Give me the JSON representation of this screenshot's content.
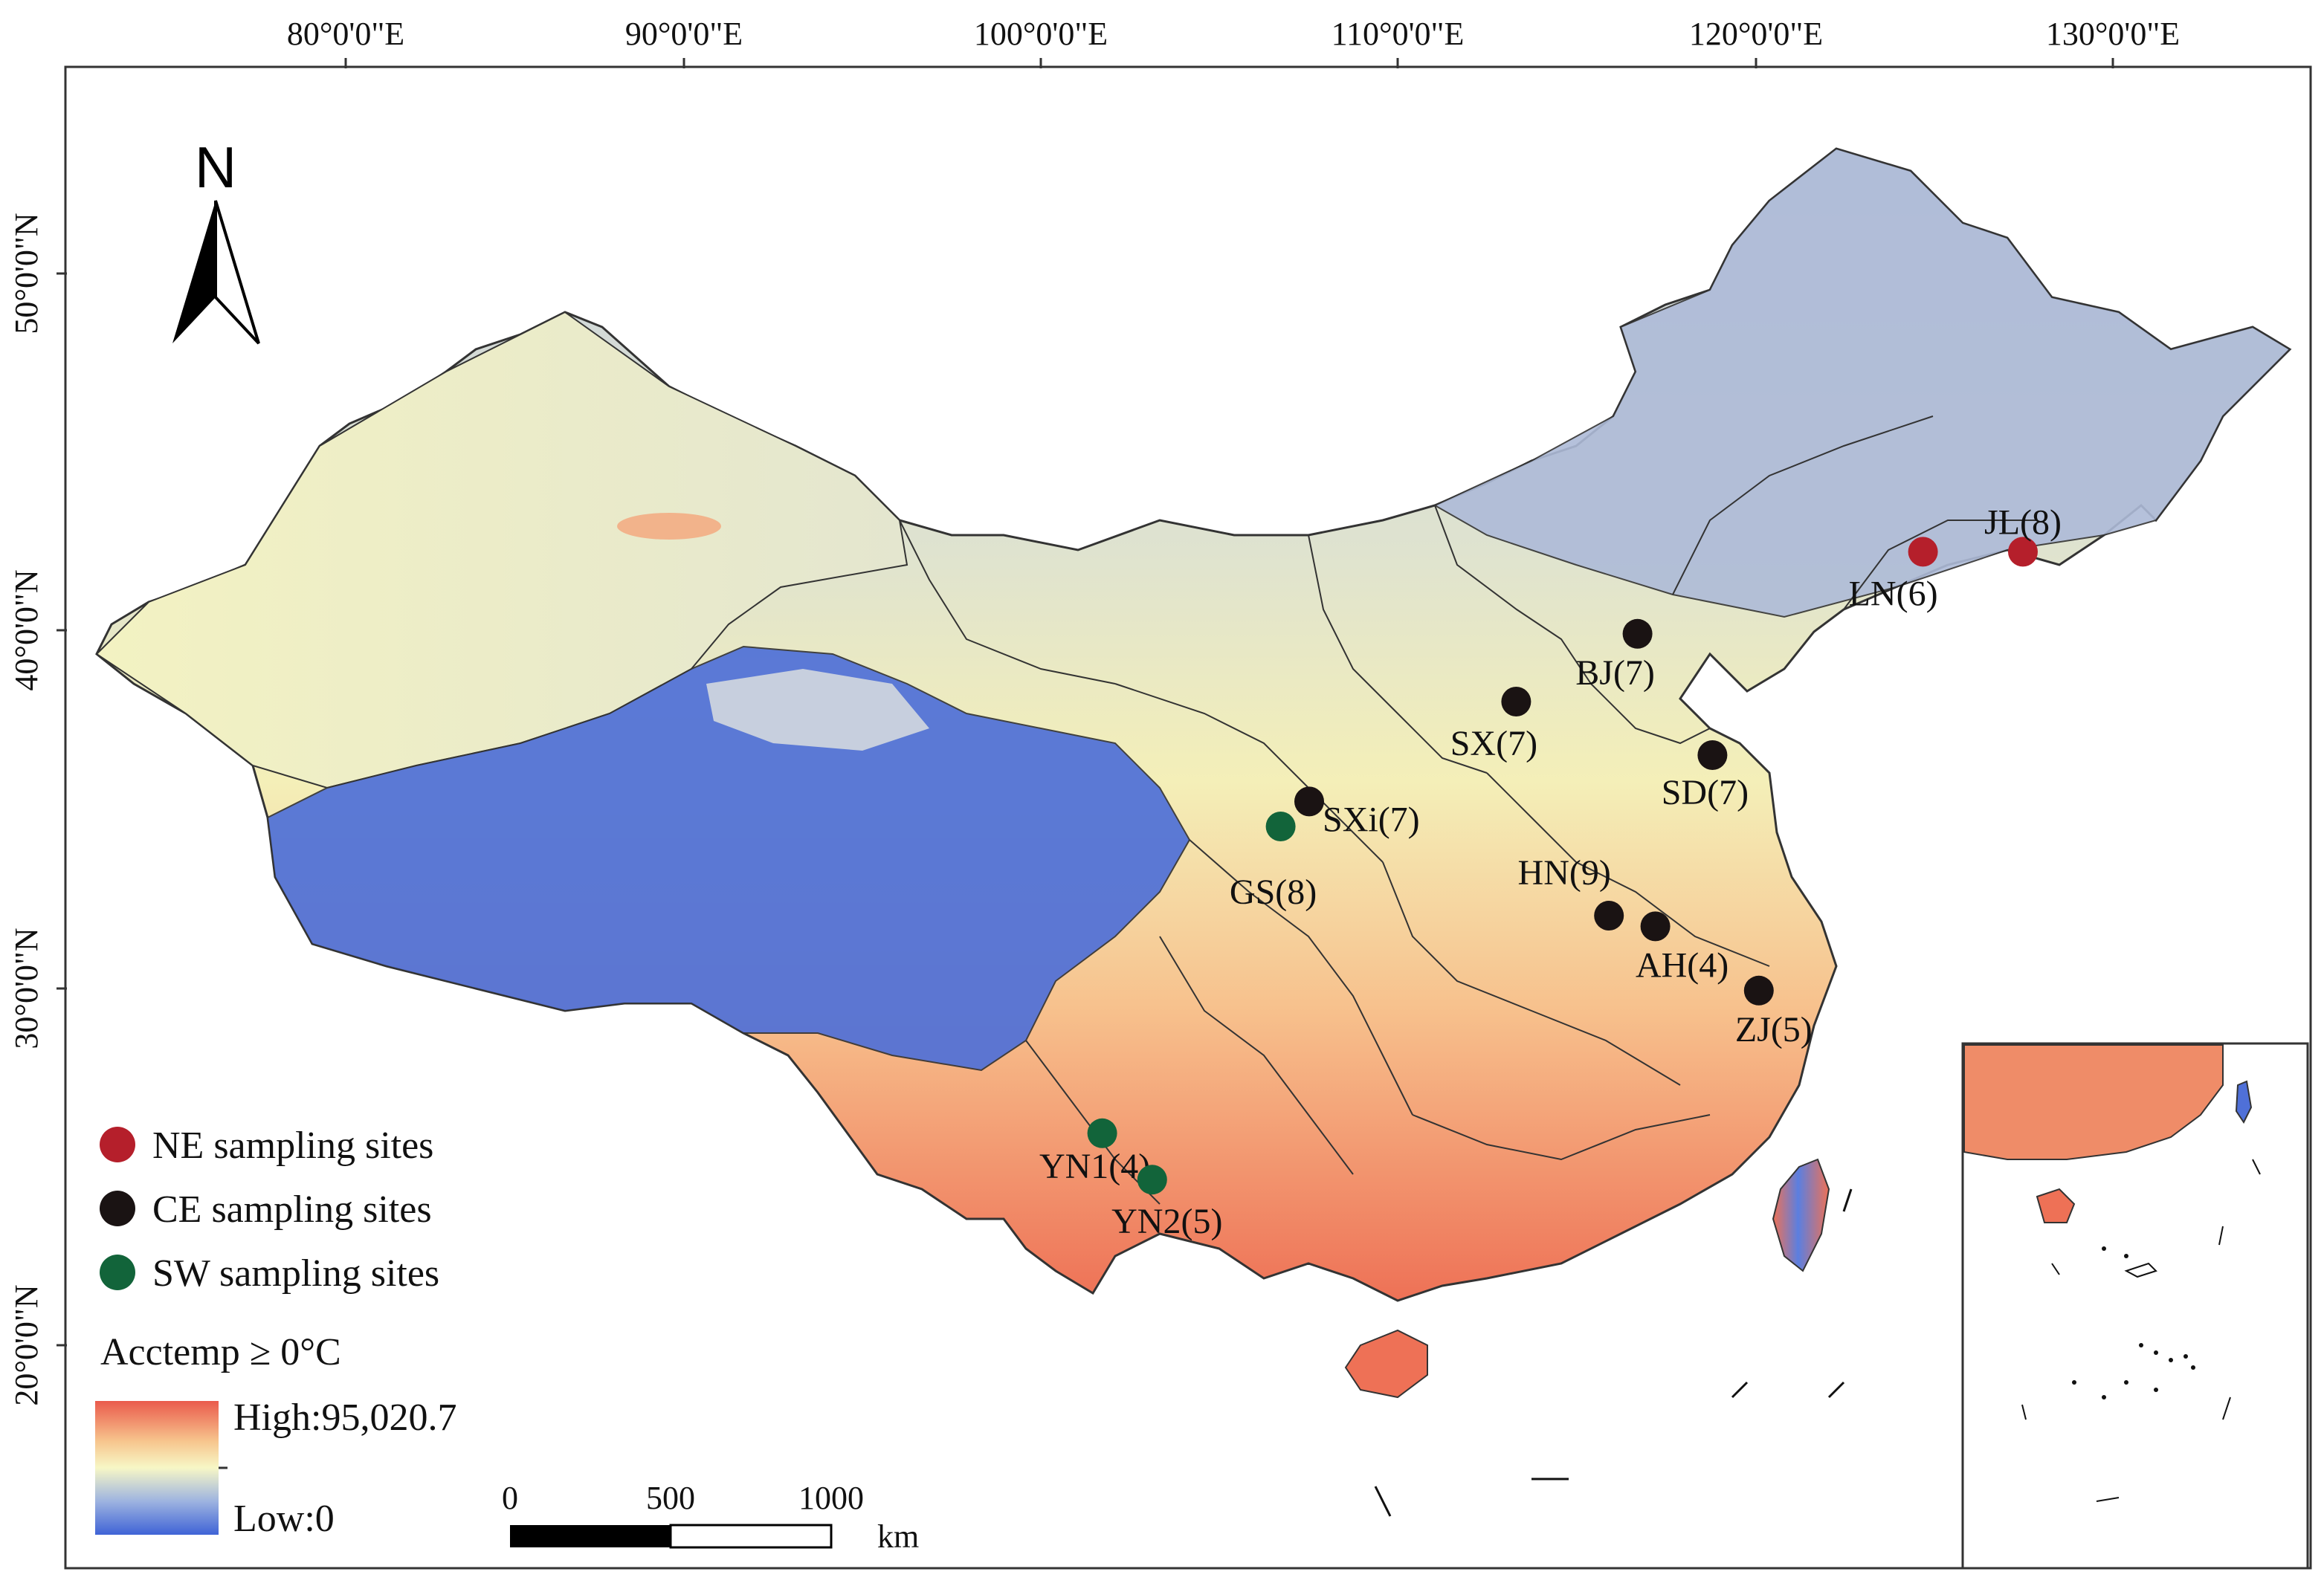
{
  "axes": {
    "top_ticks": [
      "80°0'0\"E",
      "90°0'0\"E",
      "100°0'0\"E",
      "110°0'0\"E",
      "120°0'0\"E",
      "130°0'0\"E"
    ],
    "left_ticks": [
      "50°0'0\"N",
      "40°0'0\"N",
      "30°0'0\"N",
      "20°0'0\"N"
    ]
  },
  "north_arrow": {
    "label": "N",
    "icon": "north-arrow-icon"
  },
  "sites": [
    {
      "label": "JL(8)",
      "group": "NE",
      "lon": 127.0,
      "lat": 42.2
    },
    {
      "label": "LN(6)",
      "group": "NE",
      "lon": 124.2,
      "lat": 42.2
    },
    {
      "label": "BJ(7)",
      "group": "CE",
      "lon": 116.2,
      "lat": 39.9
    },
    {
      "label": "SX(7)",
      "group": "CE",
      "lon": 112.8,
      "lat": 38.0
    },
    {
      "label": "SD(7)",
      "group": "CE",
      "lon": 118.3,
      "lat": 36.5
    },
    {
      "label": "SXi(7)",
      "group": "CE",
      "lon": 107.0,
      "lat": 35.2
    },
    {
      "label": "GS(8)",
      "group": "SW",
      "lon": 106.2,
      "lat": 34.5
    },
    {
      "label": "HN(9)",
      "group": "CE",
      "lon": 115.4,
      "lat": 32.0
    },
    {
      "label": "AH(4)",
      "group": "CE",
      "lon": 116.7,
      "lat": 31.7
    },
    {
      "label": "ZJ(5)",
      "group": "CE",
      "lon": 119.6,
      "lat": 29.9
    },
    {
      "label": "YN1(4)",
      "group": "SW",
      "lon": 101.2,
      "lat": 25.9
    },
    {
      "label": "YN2(5)",
      "group": "SW",
      "lon": 102.6,
      "lat": 24.6
    }
  ],
  "legend": {
    "items": [
      {
        "group": "NE",
        "label": "NE  sampling sites",
        "color": "#b51f2b"
      },
      {
        "group": "CE",
        "label": "CE  sampling sites",
        "color": "#1a1313"
      },
      {
        "group": "SW",
        "label": "SW sampling sites",
        "color": "#12643a"
      }
    ],
    "ramp_title": "Acctemp ≥ 0°C",
    "high_label": "High:95,020.7",
    "low_label": "Low:0",
    "ramp_colors": [
      "#ea5a4c",
      "#f7c58d",
      "#f7f7c6",
      "#9db3e0",
      "#3f63d6"
    ]
  },
  "scale_bar": {
    "ticks": [
      "0",
      "500",
      "1000"
    ],
    "unit": "km"
  }
}
